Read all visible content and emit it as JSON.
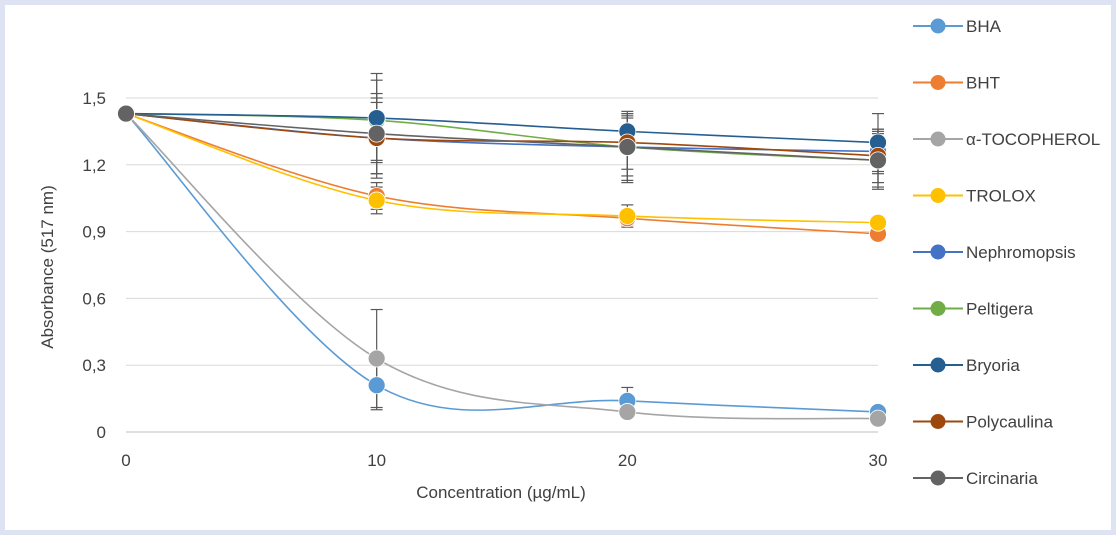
{
  "chart_data": {
    "type": "line",
    "title": "",
    "xlabel": "Concentration (µg/mL)",
    "ylabel": "Absorbance (517 nm)",
    "x": [
      0,
      10,
      20,
      30
    ],
    "x_ticks": [
      "0",
      "10",
      "20",
      "30"
    ],
    "xlim": [
      0,
      30
    ],
    "ylim": [
      0,
      1.5
    ],
    "y_ticks": [
      {
        "value": 0,
        "label": "0"
      },
      {
        "value": 0.3,
        "label": "0,3"
      },
      {
        "value": 0.6,
        "label": "0,6"
      },
      {
        "value": 0.9,
        "label": "0,9"
      },
      {
        "value": 1.2,
        "label": "1,2"
      },
      {
        "value": 1.5,
        "label": "1,5"
      }
    ],
    "grid": "horizontal",
    "legend_position": "right",
    "smooth": true,
    "series": [
      {
        "name": "BHA",
        "color": "#5b9bd5",
        "values": [
          1.43,
          0.21,
          0.14,
          0.09
        ],
        "errors": [
          0,
          0.11,
          0.06,
          0
        ]
      },
      {
        "name": "BHT",
        "color": "#ed7d31",
        "values": [
          1.43,
          1.06,
          0.96,
          0.89
        ],
        "errors": [
          0,
          0.06,
          0.03,
          0
        ]
      },
      {
        "name": "α-TOCOPHEROL",
        "color": "#a5a5a5",
        "values": [
          1.43,
          0.33,
          0.09,
          0.06
        ],
        "errors": [
          0,
          0.22,
          0,
          0
        ]
      },
      {
        "name": "TROLOX",
        "color": "#ffc000",
        "values": [
          1.43,
          1.04,
          0.97,
          0.94
        ],
        "errors": [
          0,
          0.06,
          0.05,
          0
        ]
      },
      {
        "name": "Nephromopsis",
        "color": "#4472c4",
        "values": [
          1.43,
          1.32,
          1.28,
          1.26
        ],
        "errors": [
          0,
          0.18,
          0.13,
          0.1
        ]
      },
      {
        "name": "Peltigera",
        "color": "#70ad47",
        "values": [
          1.43,
          1.4,
          1.28,
          1.22
        ],
        "errors": [
          0,
          0.18,
          0.15,
          0.12
        ]
      },
      {
        "name": "Bryoria",
        "color": "#255e91",
        "values": [
          1.43,
          1.41,
          1.35,
          1.3
        ],
        "errors": [
          0,
          0.2,
          0.08,
          0.13
        ]
      },
      {
        "name": "Polycaulina",
        "color": "#9e480e",
        "values": [
          1.43,
          1.32,
          1.3,
          1.24
        ],
        "errors": [
          0,
          0.16,
          0.12,
          0.12
        ]
      },
      {
        "name": "Circinaria",
        "color": "#636363",
        "values": [
          1.43,
          1.34,
          1.28,
          1.22
        ],
        "errors": [
          0,
          0.18,
          0.16,
          0.13
        ]
      }
    ]
  }
}
